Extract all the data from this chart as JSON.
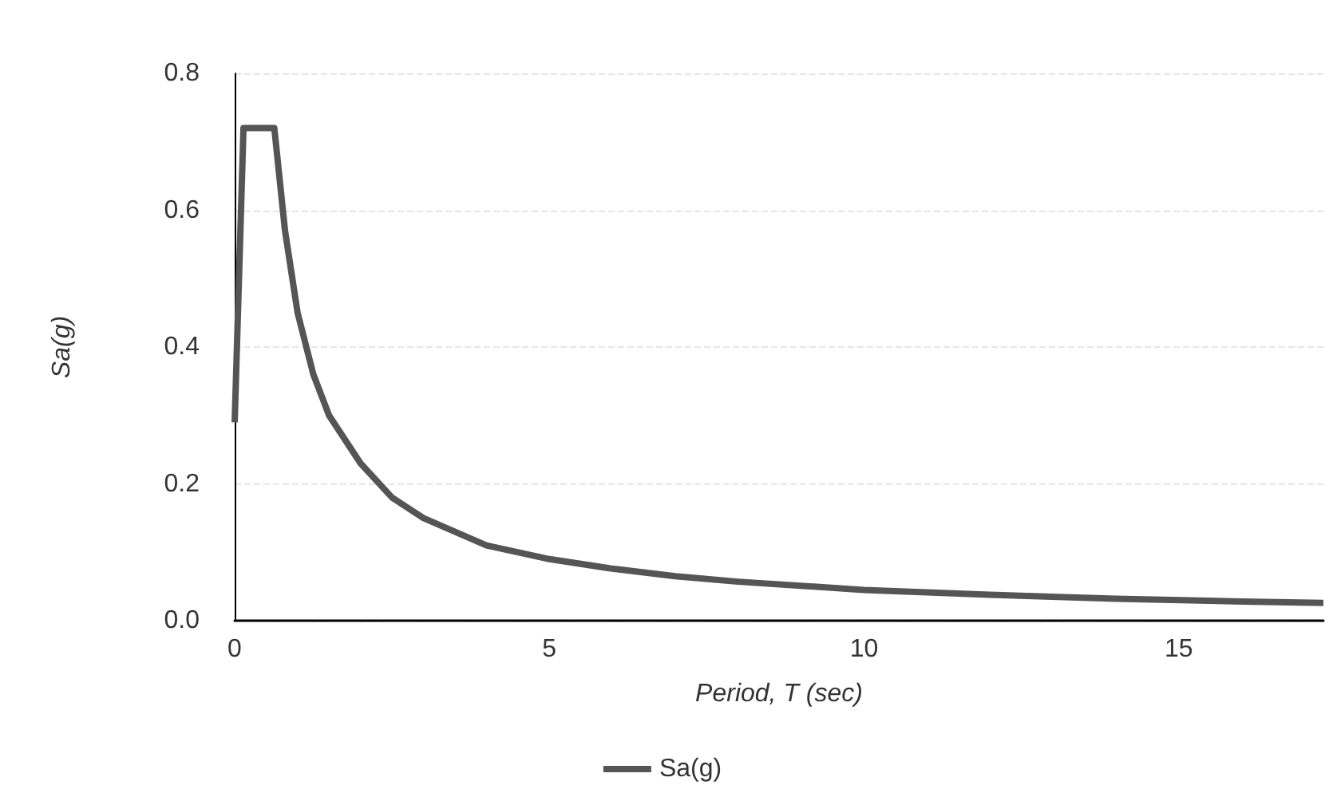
{
  "chart_data": {
    "type": "line",
    "xlabel": "Period, T (sec)",
    "ylabel": "Sa(g)",
    "x": [
      0,
      0.14,
      0.63,
      0.8,
      1,
      1.25,
      1.5,
      2,
      2.5,
      3,
      4,
      5,
      6,
      7,
      8,
      10,
      12,
      14,
      16,
      17.3
    ],
    "series": [
      {
        "name": "Sa(g)",
        "color": "#555555",
        "values": [
          0.29,
          0.72,
          0.72,
          0.57,
          0.45,
          0.36,
          0.3,
          0.23,
          0.18,
          0.15,
          0.11,
          0.09,
          0.076,
          0.065,
          0.057,
          0.045,
          0.038,
          0.032,
          0.028,
          0.026
        ]
      }
    ],
    "xlim": [
      0,
      17.3
    ],
    "xticks": [
      0,
      5,
      10,
      15
    ],
    "ylim": [
      0,
      0.8
    ],
    "yticks": [
      {
        "value": 0,
        "label": "0.0"
      },
      {
        "value": 0.2,
        "label": "0.2"
      },
      {
        "value": 0.4,
        "label": "0.4"
      },
      {
        "value": 0.6,
        "label": "0.6"
      },
      {
        "value": 0.8,
        "label": "0.8"
      }
    ],
    "grid": "y",
    "legend": "bottom",
    "marker": "none",
    "line_style": "solid"
  }
}
